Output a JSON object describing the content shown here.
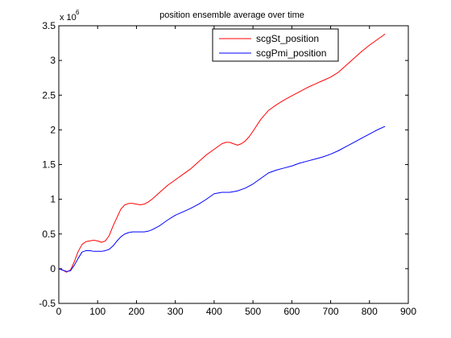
{
  "chart_data": {
    "type": "line",
    "title": "position ensemble average over time",
    "xlabel": "",
    "ylabel": "",
    "xlim": [
      0,
      900
    ],
    "ylim": [
      -0.5,
      3.5
    ],
    "y_multiplier_base": "x 10",
    "y_multiplier_exponent": "6",
    "x_ticks": [
      0,
      100,
      200,
      300,
      400,
      500,
      600,
      700,
      800,
      900
    ],
    "y_ticks": [
      -0.5,
      0,
      0.5,
      1,
      1.5,
      2,
      2.5,
      3,
      3.5
    ],
    "x_tick_labels": [
      "0",
      "100",
      "200",
      "300",
      "400",
      "500",
      "600",
      "700",
      "800",
      "900"
    ],
    "y_tick_labels": [
      "-0.5",
      "0",
      "0.5",
      "1",
      "1.5",
      "2",
      "2.5",
      "3",
      "3.5"
    ],
    "grid": false,
    "legend_position": "top-right",
    "series": [
      {
        "name": "scgSt_position",
        "color": "#ff0000",
        "x": [
          0,
          10,
          20,
          30,
          40,
          50,
          60,
          70,
          80,
          90,
          100,
          110,
          120,
          130,
          140,
          150,
          160,
          170,
          180,
          190,
          200,
          210,
          220,
          230,
          240,
          260,
          280,
          300,
          320,
          340,
          360,
          380,
          400,
          420,
          430,
          440,
          450,
          460,
          470,
          480,
          490,
          500,
          520,
          540,
          560,
          580,
          600,
          620,
          640,
          660,
          680,
          700,
          720,
          740,
          760,
          780,
          800,
          820,
          840
        ],
        "y": [
          0.0,
          -0.02,
          -0.05,
          -0.02,
          0.1,
          0.25,
          0.35,
          0.39,
          0.4,
          0.41,
          0.4,
          0.38,
          0.4,
          0.48,
          0.62,
          0.74,
          0.86,
          0.92,
          0.94,
          0.94,
          0.93,
          0.92,
          0.93,
          0.96,
          1.0,
          1.1,
          1.2,
          1.28,
          1.36,
          1.44,
          1.54,
          1.64,
          1.72,
          1.8,
          1.82,
          1.82,
          1.8,
          1.78,
          1.8,
          1.84,
          1.9,
          1.98,
          2.15,
          2.28,
          2.36,
          2.43,
          2.49,
          2.55,
          2.61,
          2.66,
          2.71,
          2.76,
          2.83,
          2.93,
          3.03,
          3.13,
          3.22,
          3.3,
          3.38
        ]
      },
      {
        "name": "scgPmi_position",
        "color": "#0000ff",
        "x": [
          0,
          10,
          20,
          30,
          40,
          50,
          60,
          70,
          80,
          90,
          100,
          110,
          120,
          130,
          140,
          150,
          160,
          170,
          180,
          190,
          200,
          210,
          220,
          230,
          240,
          260,
          280,
          300,
          320,
          340,
          360,
          380,
          400,
          420,
          430,
          440,
          450,
          460,
          480,
          500,
          520,
          540,
          560,
          580,
          600,
          620,
          640,
          660,
          680,
          700,
          720,
          740,
          760,
          780,
          800,
          820,
          840
        ],
        "y": [
          0.0,
          -0.02,
          -0.04,
          -0.03,
          0.05,
          0.15,
          0.24,
          0.26,
          0.26,
          0.25,
          0.25,
          0.25,
          0.26,
          0.28,
          0.33,
          0.4,
          0.46,
          0.5,
          0.52,
          0.53,
          0.53,
          0.53,
          0.53,
          0.54,
          0.56,
          0.62,
          0.7,
          0.77,
          0.82,
          0.87,
          0.93,
          1.0,
          1.08,
          1.1,
          1.1,
          1.1,
          1.11,
          1.12,
          1.16,
          1.22,
          1.3,
          1.38,
          1.42,
          1.45,
          1.48,
          1.52,
          1.55,
          1.58,
          1.61,
          1.65,
          1.7,
          1.76,
          1.82,
          1.88,
          1.94,
          2.0,
          2.05
        ]
      }
    ]
  }
}
